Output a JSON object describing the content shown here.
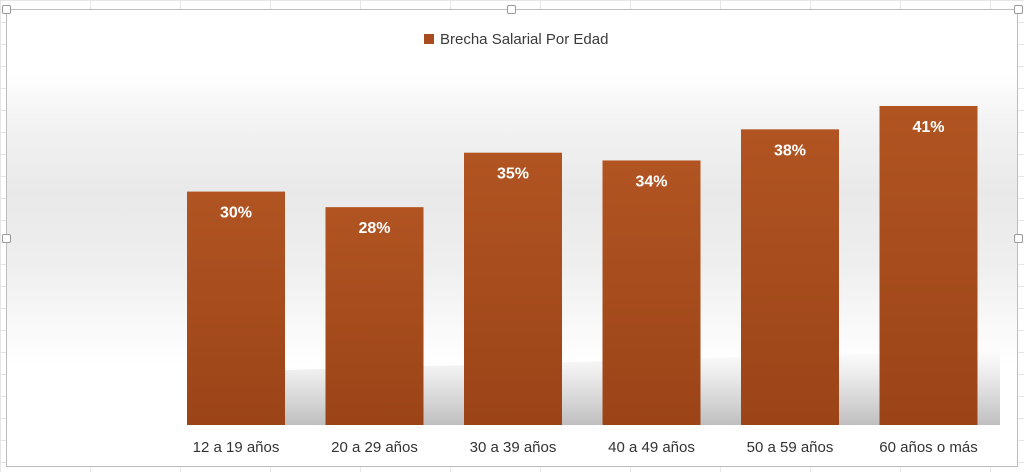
{
  "chart_data": {
    "type": "bar",
    "categories": [
      "12 a 19 años",
      "20 a 29 años",
      "30 a 39 años",
      "40 a 49 años",
      "50 a 59 años",
      "60 años o más"
    ],
    "series": [
      {
        "name": "Brecha Salarial Por Edad",
        "values": [
          30,
          28,
          35,
          34,
          38,
          41
        ],
        "labels": [
          "30%",
          "28%",
          "35%",
          "34%",
          "38%",
          "41%"
        ]
      }
    ],
    "ylim": [
      0,
      41
    ],
    "bar_color": "#a84c1f",
    "legend_position": "top",
    "grid": false
  }
}
